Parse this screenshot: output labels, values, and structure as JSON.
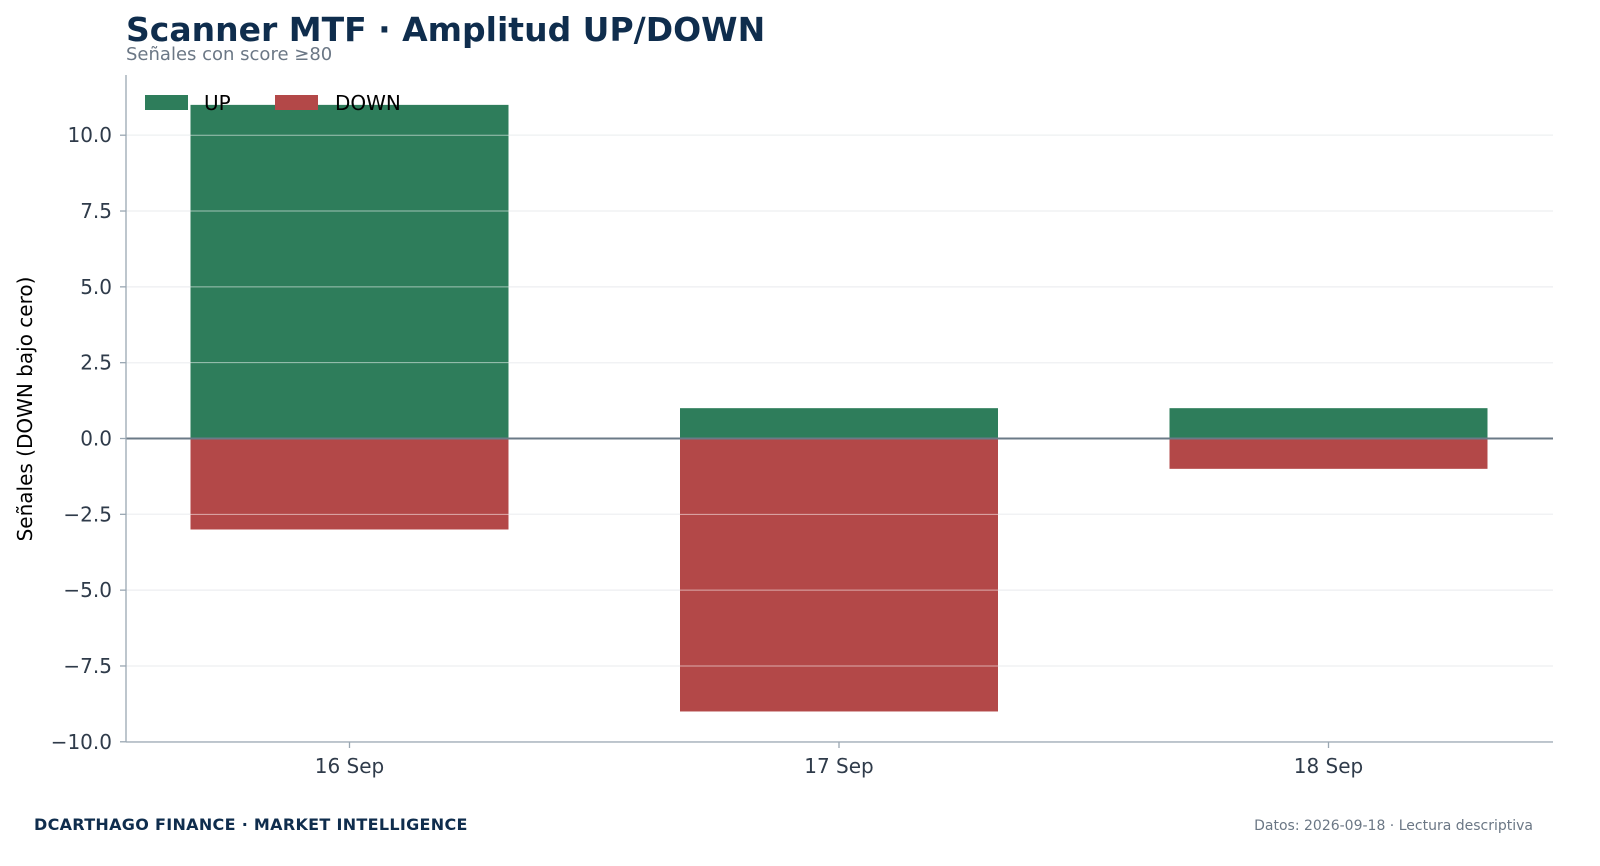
{
  "header": {
    "title": "Scanner MTF · Amplitud UP/DOWN",
    "subtitle": "Señales con score ≥80"
  },
  "footer": {
    "brand": "DCARTHAGO FINANCE · MARKET INTELLIGENCE",
    "note": "Datos: 2026-09-18 · Lectura descriptiva"
  },
  "chart_data": {
    "type": "bar",
    "title": "Scanner MTF · Amplitud UP/DOWN",
    "subtitle": "Señales con score ≥80",
    "xlabel": "",
    "ylabel": "Señales (DOWN bajo cero)",
    "categories": [
      "16 Sep",
      "17 Sep",
      "18 Sep"
    ],
    "series": [
      {
        "name": "UP",
        "values": [
          11,
          1,
          1
        ],
        "color": "#2e7d5b"
      },
      {
        "name": "DOWN",
        "values": [
          -3,
          -9,
          -1
        ],
        "color": "#b34848"
      }
    ],
    "ylim": [
      -10,
      12
    ],
    "yticks": [
      10,
      7.5,
      5,
      2.5,
      0,
      -2.5,
      -5,
      -7.5,
      -10
    ],
    "ytick_labels": [
      "10.0",
      "7.5",
      "5.0",
      "2.5",
      "0.0",
      "−2.5",
      "−5.0",
      "−7.5",
      "−10.0"
    ],
    "grid": true,
    "legend": {
      "placement": "top-left",
      "columns": 2
    },
    "colors": {
      "grid": "#dfe3e7",
      "axis": "#9aa7b2",
      "zero_line": "#6b7a87"
    }
  }
}
